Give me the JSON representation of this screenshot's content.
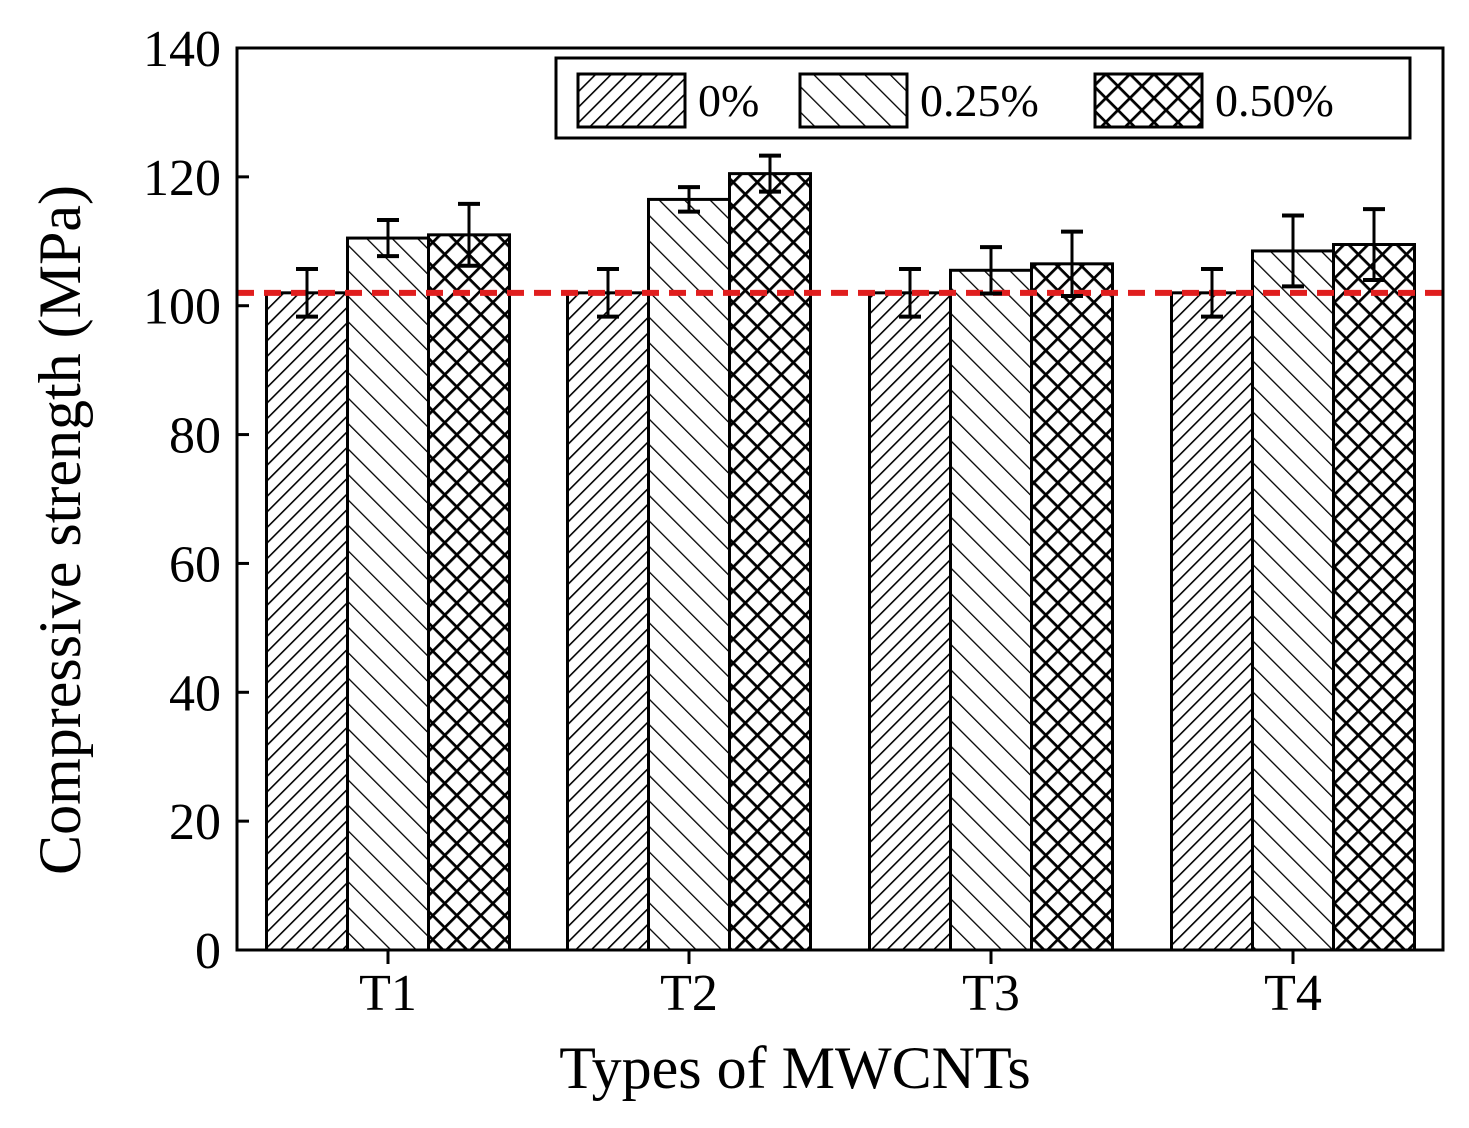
{
  "chart_data": {
    "type": "bar",
    "title": "",
    "xlabel": "Types of MWCNTs",
    "ylabel": "Compressive strength (MPa)",
    "categories": [
      "T1",
      "T2",
      "T3",
      "T4"
    ],
    "ylim": [
      0,
      140
    ],
    "yticks": [
      0,
      20,
      40,
      60,
      80,
      100,
      120,
      140
    ],
    "grid": false,
    "legend_position": "top-right",
    "series": [
      {
        "name": "0%",
        "pattern": "diagonal-forward",
        "values": [
          102,
          102,
          102,
          102
        ],
        "errors": [
          3.7,
          3.7,
          3.7,
          3.7
        ]
      },
      {
        "name": "0.25%",
        "pattern": "diagonal-backward",
        "values": [
          110.5,
          116.5,
          105.5,
          108.5
        ],
        "errors": [
          2.8,
          1.9,
          3.6,
          5.5
        ]
      },
      {
        "name": "0.50%",
        "pattern": "crosshatch",
        "values": [
          111,
          120.5,
          106.5,
          109.5
        ],
        "errors": [
          4.8,
          2.8,
          5.0,
          5.5
        ]
      }
    ],
    "reference_line": {
      "value": 102,
      "style": "dashed",
      "color": "#e01e1e"
    }
  }
}
